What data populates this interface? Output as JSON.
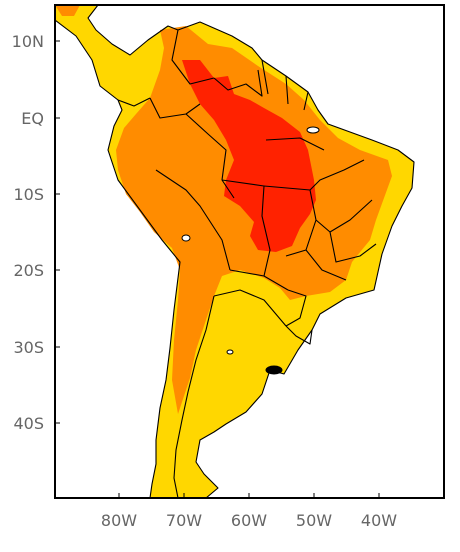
{
  "map": {
    "lat_labels": [
      "10N",
      "EQ",
      "10S",
      "20S",
      "30S",
      "40S"
    ],
    "lon_labels": [
      "80W",
      "70W",
      "60W",
      "50W",
      "40W"
    ],
    "lat_values": [
      10,
      0,
      -10,
      -20,
      -30,
      -40
    ],
    "lon_values": [
      -80,
      -70,
      -60,
      -50,
      -40
    ],
    "extent": {
      "lon_min": -89,
      "lon_max": -29,
      "lat_min": -50,
      "lat_max": 15
    },
    "colors": {
      "ocean": "#ffffff",
      "low": "#ffd700",
      "mid": "#ff8c00",
      "high": "#ff2200",
      "border": "#000000"
    }
  }
}
